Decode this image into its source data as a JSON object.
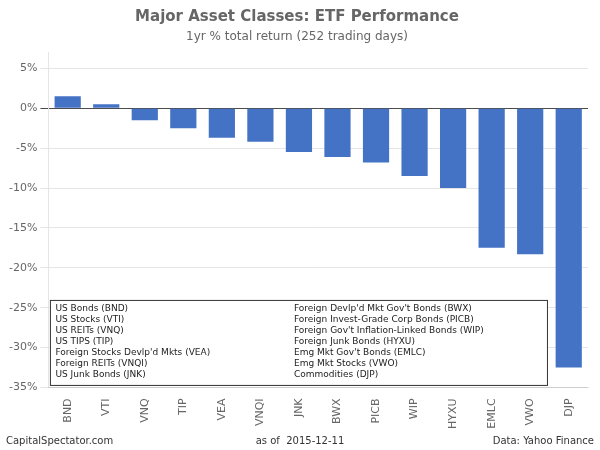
{
  "chart_data": {
    "type": "bar",
    "title": "Major Asset Classes: ETF Performance",
    "subtitle": "1yr % total return (252 trading days)",
    "categories": [
      "BND",
      "VTI",
      "VNQ",
      "TIP",
      "VEA",
      "VNQI",
      "JNK",
      "BWX",
      "PICB",
      "WIP",
      "HYXU",
      "EMLC",
      "VWO",
      "DJP"
    ],
    "values": [
      1.5,
      0.5,
      -1.5,
      -2.5,
      -3.7,
      -4.2,
      -5.5,
      -6.1,
      -6.8,
      -8.5,
      -10.0,
      -17.5,
      -18.3,
      -32.5
    ],
    "color": "#4472C4",
    "ylim": [
      -35,
      7
    ],
    "yticks": [
      {
        "value": 5,
        "label": "5%"
      },
      {
        "value": 0,
        "label": "0%"
      },
      {
        "value": -5,
        "label": "-5%"
      },
      {
        "value": -10,
        "label": "-10%"
      },
      {
        "value": -15,
        "label": "-15%"
      },
      {
        "value": -20,
        "label": "-20%"
      },
      {
        "value": -25,
        "label": "-25%"
      },
      {
        "value": -30,
        "label": "-30%"
      },
      {
        "value": -35,
        "label": "-35%"
      }
    ],
    "grid": true,
    "annotations": [
      "CapitalSpectator.com",
      "as of  2015-12-11",
      "Data: Yahoo Finance",
      "US Bonds (BND)",
      "US Stocks (VTI)",
      "US REITs (VNQ)",
      "US TIPS (TIP)",
      "Foreign Stocks Devlp'd Mkts (VEA)",
      "Foreign REITs (VNQI)",
      "US Junk Bonds (JNK)",
      "Foreign Devlp'd Mkt Gov't Bonds (BWX)",
      "Foreign Invest-Grade Corp Bonds (PICB)",
      "Foreign Gov't Inflation-Linked Bonds (WIP)",
      "Foreign Junk Bonds (HYXU)",
      "Emg Mkt Gov't Bonds (EMLC)",
      "Emg Mkt Stocks (VWO)",
      "Commodities (DJP)"
    ]
  }
}
